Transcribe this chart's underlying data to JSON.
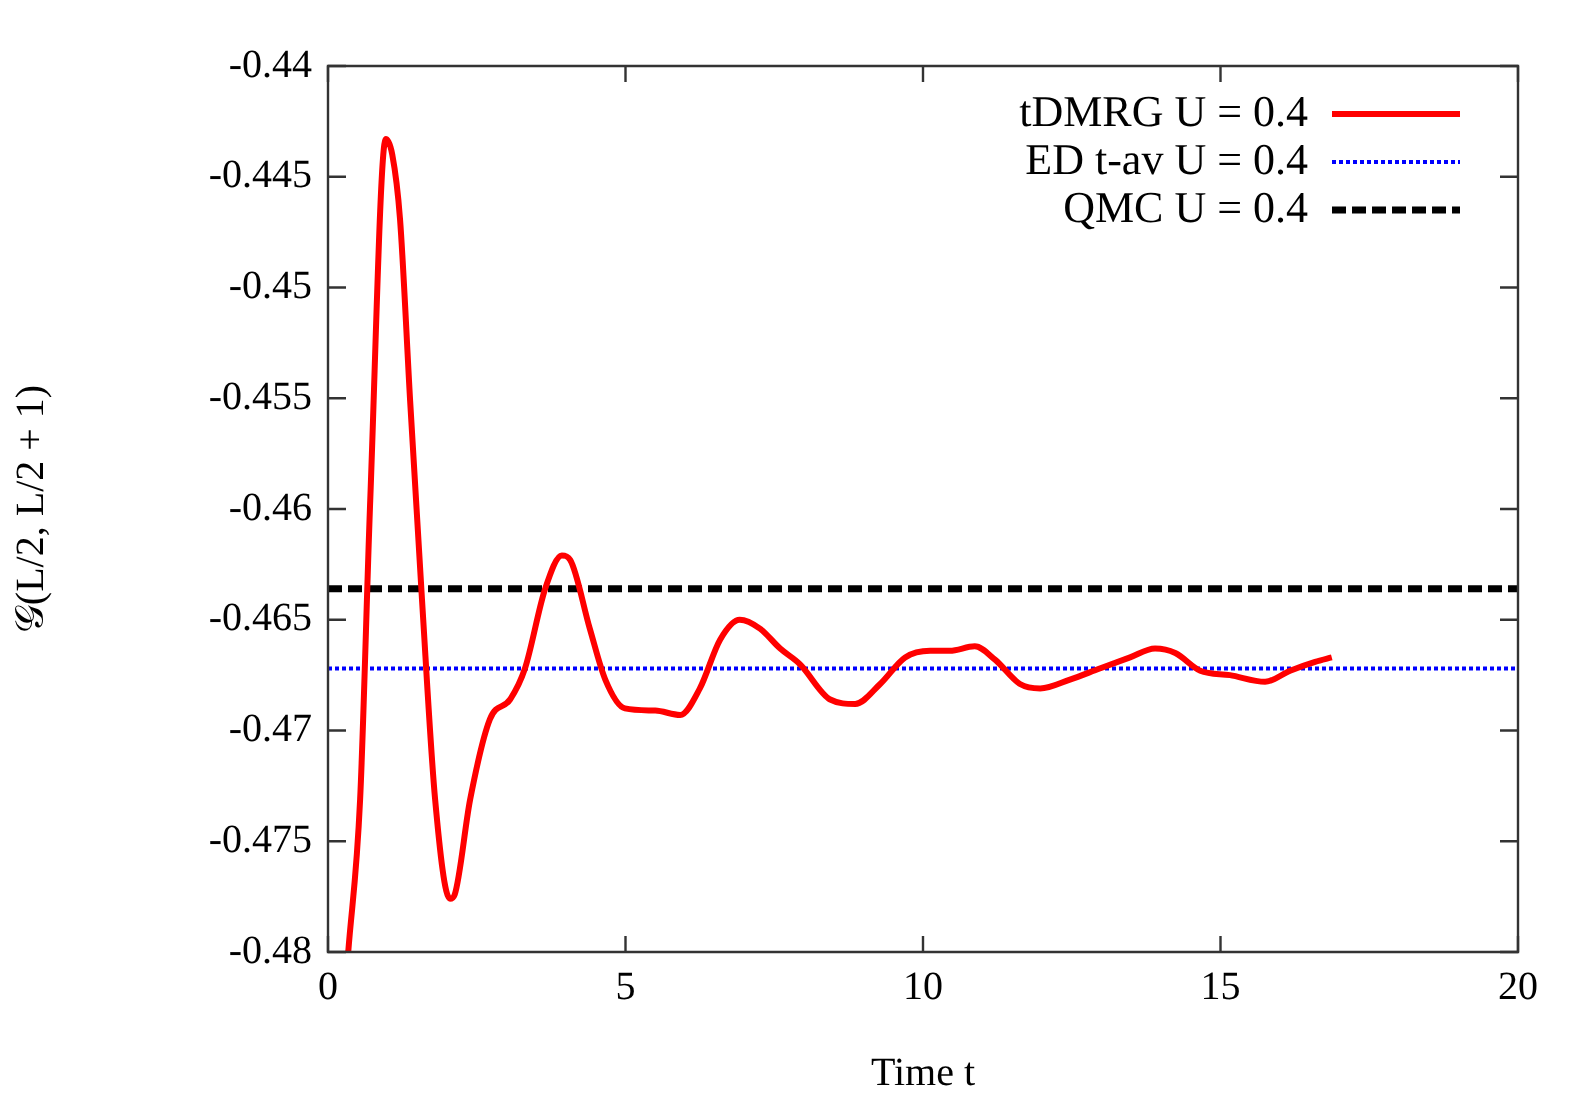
{
  "chart_data": {
    "type": "line",
    "xlabel": "Time t",
    "ylabel": "𝒢(L/2, L/2 + 1)",
    "xlim": [
      0,
      20
    ],
    "xticks": [
      0,
      5,
      10,
      15,
      20
    ],
    "ylim": [
      -0.48,
      -0.44
    ],
    "yticks": [
      -0.48,
      -0.475,
      -0.47,
      -0.465,
      -0.46,
      -0.455,
      -0.45,
      -0.445,
      -0.44
    ],
    "grid": false,
    "legend": "top right",
    "marker": "none",
    "series": [
      {
        "name": "tDMRG U = 0.4",
        "color": "#ff0000",
        "line_style": "solid",
        "x": [
          0.34,
          0.54,
          0.71,
          0.97,
          1.08,
          1.21,
          1.38,
          1.58,
          1.8,
          2.05,
          2.13,
          2.39,
          2.72,
          3.06,
          3.31,
          3.65,
          3.93,
          4.07,
          4.4,
          4.66,
          4.99,
          5.5,
          5.92,
          6.25,
          6.59,
          6.92,
          7.26,
          7.6,
          7.93,
          8.44,
          8.86,
          9.28,
          9.7,
          10.12,
          10.45,
          10.87,
          11.21,
          11.63,
          11.97,
          12.47,
          12.97,
          13.48,
          13.9,
          14.24,
          14.66,
          15.16,
          15.75,
          16.17,
          16.59,
          16.87
        ],
        "values": [
          -0.48,
          -0.4731,
          -0.4596,
          -0.4433,
          -0.444,
          -0.4469,
          -0.4551,
          -0.4641,
          -0.4731,
          -0.4776,
          -0.4774,
          -0.4731,
          -0.4695,
          -0.4686,
          -0.4672,
          -0.4636,
          -0.4621,
          -0.4623,
          -0.4654,
          -0.4677,
          -0.469,
          -0.4691,
          -0.4693,
          -0.4681,
          -0.4659,
          -0.465,
          -0.4654,
          -0.4663,
          -0.467,
          -0.4686,
          -0.4688,
          -0.4679,
          -0.4667,
          -0.4664,
          -0.4664,
          -0.4662,
          -0.4668,
          -0.4679,
          -0.4681,
          -0.4677,
          -0.4672,
          -0.4667,
          -0.4663,
          -0.4665,
          -0.4673,
          -0.4675,
          -0.4678,
          -0.4673,
          -0.4669,
          -0.4667
        ]
      },
      {
        "name": "ED t-av U = 0.4",
        "color": "#0000ff",
        "line_style": "dotted",
        "x": [
          0,
          20
        ],
        "values": [
          -0.4672,
          -0.4672
        ]
      },
      {
        "name": "QMC U = 0.4",
        "color": "#000000",
        "line_style": "dashed",
        "x": [
          0,
          20
        ],
        "values": [
          -0.4636,
          -0.4636
        ]
      }
    ]
  }
}
